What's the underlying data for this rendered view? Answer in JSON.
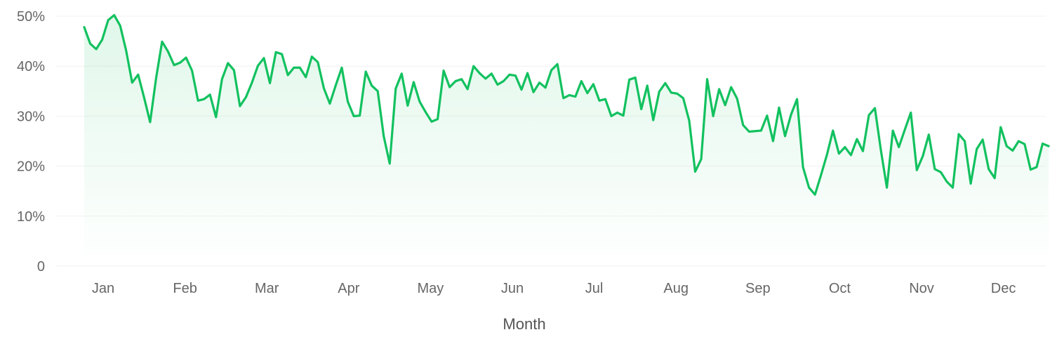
{
  "chart_data": {
    "type": "area",
    "xlabel": "Month",
    "ylabel": "",
    "ylim": [
      0,
      50
    ],
    "y_ticks": [
      0,
      10,
      20,
      30,
      40,
      50
    ],
    "y_tick_labels": [
      "0",
      "10%",
      "20%",
      "30%",
      "40%",
      "50%"
    ],
    "x_ticks": [
      "Jan",
      "Feb",
      "Mar",
      "Apr",
      "May",
      "Jun",
      "Jul",
      "Aug",
      "Sep",
      "Oct",
      "Nov",
      "Dec"
    ],
    "grid": true,
    "line_color": "#12c15f",
    "series": [
      {
        "values": [
          47.8,
          44.5,
          43.4,
          45.3,
          49.2,
          50.2,
          48.1,
          43.1,
          36.7,
          38.3,
          33.7,
          28.8,
          37.6,
          44.9,
          42.9,
          40.2,
          40.7,
          41.7,
          39.1,
          33.1,
          33.4,
          34.3,
          29.8,
          37.4,
          40.6,
          39.2,
          32.0,
          33.8,
          36.7,
          40.1,
          41.6,
          36.6,
          42.8,
          42.4,
          38.2,
          39.7,
          39.7,
          37.8,
          41.9,
          40.8,
          35.6,
          32.5,
          36.2,
          39.7,
          32.9,
          30.0,
          30.1,
          38.9,
          36.1,
          35.0,
          26.0,
          20.5,
          35.5,
          38.5,
          32.1,
          36.8,
          32.9,
          30.8,
          28.9,
          29.4,
          39.1,
          35.8,
          37.0,
          37.4,
          35.4,
          40.0,
          38.6,
          37.5,
          38.5,
          36.3,
          37.0,
          38.3,
          38.1,
          35.3,
          38.6,
          34.8,
          36.7,
          35.7,
          39.2,
          40.4,
          33.6,
          34.2,
          33.9,
          37.0,
          34.6,
          36.4,
          33.1,
          33.4,
          30.0,
          30.7,
          30.1,
          37.3,
          37.7,
          31.4,
          36.1,
          29.2,
          34.9,
          36.6,
          34.7,
          34.5,
          33.6,
          29.1,
          18.9,
          21.4,
          37.4,
          30.0,
          35.4,
          32.2,
          35.8,
          33.5,
          28.2,
          26.9,
          27.0,
          27.1,
          30.1,
          25.0,
          31.7,
          26.0,
          30.3,
          33.4,
          19.8,
          15.7,
          14.3,
          18.2,
          22.3,
          27.1,
          22.5,
          23.8,
          22.2,
          25.4,
          23.0,
          30.2,
          31.6,
          23.2,
          15.7,
          27.1,
          23.8,
          27.3,
          30.7,
          19.2,
          22.0,
          26.3,
          19.4,
          18.8,
          16.9,
          15.7,
          26.4,
          25.0,
          16.5,
          23.4,
          25.3,
          19.4,
          17.6,
          27.8,
          24.0,
          23.1,
          25.0,
          24.4,
          19.3,
          19.8,
          24.5,
          24.0
        ]
      }
    ]
  }
}
